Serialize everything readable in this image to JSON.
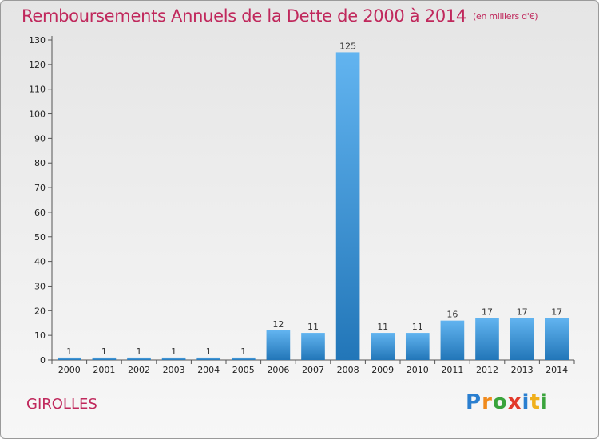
{
  "title": "Remboursements Annuels de la Dette de 2000 à 2014",
  "unit": "(en milliers d'€)",
  "commune": "GIROLLES",
  "logo": {
    "letters": [
      "P",
      "r",
      "o",
      "x",
      "i",
      "t",
      "i"
    ],
    "colors": [
      "#2a7fd0",
      "#f08a1c",
      "#3aa43c",
      "#e23a2a",
      "#2a7fd0",
      "#f0b01c",
      "#3aa43c"
    ]
  },
  "colors": {
    "title": "#c0285c",
    "bar_top": "#62b4f0",
    "bar_bottom": "#2276b8"
  },
  "chart_data": {
    "type": "bar",
    "title": "Remboursements Annuels de la Dette de 2000 à 2014",
    "xlabel": "",
    "ylabel": "",
    "categories": [
      "2000",
      "2001",
      "2002",
      "2003",
      "2004",
      "2005",
      "2006",
      "2007",
      "2008",
      "2009",
      "2010",
      "2011",
      "2012",
      "2013",
      "2014"
    ],
    "values": [
      1,
      1,
      1,
      1,
      1,
      1,
      12,
      11,
      125,
      11,
      11,
      16,
      17,
      17,
      17
    ],
    "ylim": [
      0,
      130
    ],
    "yticks": [
      0,
      10,
      20,
      30,
      40,
      50,
      60,
      70,
      80,
      90,
      100,
      110,
      120,
      130
    ],
    "grid": false
  }
}
